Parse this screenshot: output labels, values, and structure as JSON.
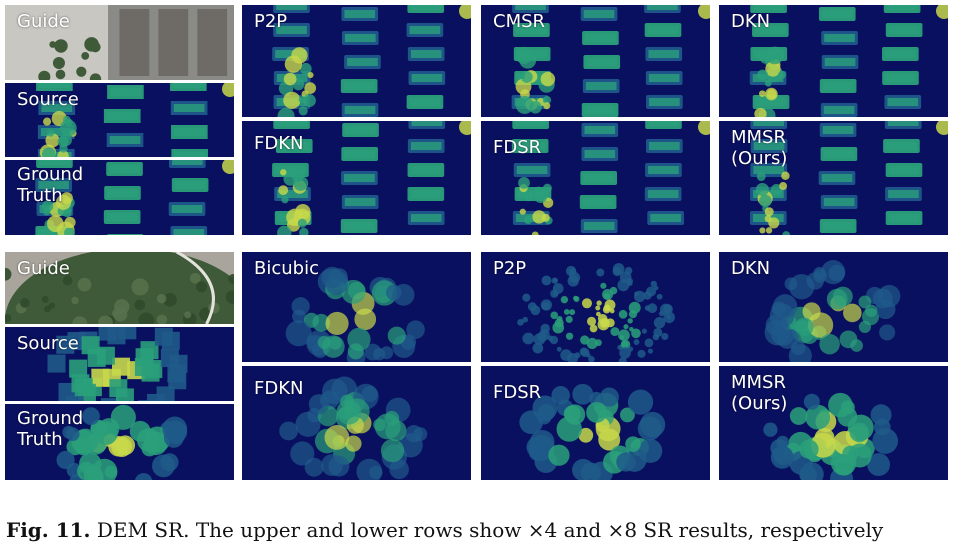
{
  "figure": {
    "upper": {
      "left_column": [
        {
          "label": "Guide",
          "kind": "aerial-buildings"
        },
        {
          "label": "Source",
          "kind": "dem-buildings-coarse"
        },
        {
          "label": "Ground\nTruth",
          "kind": "dem-buildings"
        }
      ],
      "grid": [
        {
          "label": "P2P",
          "kind": "dem-buildings"
        },
        {
          "label": "CMSR",
          "kind": "dem-buildings"
        },
        {
          "label": "DKN",
          "kind": "dem-buildings"
        },
        {
          "label": "FDKN",
          "kind": "dem-buildings"
        },
        {
          "label": "FDSR",
          "kind": "dem-buildings"
        },
        {
          "label": "MMSR\n(Ours)",
          "kind": "dem-buildings"
        }
      ]
    },
    "lower": {
      "left_column": [
        {
          "label": "Guide",
          "kind": "aerial-trees"
        },
        {
          "label": "Source",
          "kind": "dem-trees-coarse"
        },
        {
          "label": "Ground\nTruth",
          "kind": "dem-trees"
        }
      ],
      "grid": [
        {
          "label": "Bicubic",
          "kind": "dem-trees-blur"
        },
        {
          "label": "P2P",
          "kind": "dem-trees-noisy"
        },
        {
          "label": "DKN",
          "kind": "dem-trees-blur"
        },
        {
          "label": "FDKN",
          "kind": "dem-trees-blur"
        },
        {
          "label": "FDSR",
          "kind": "dem-trees"
        },
        {
          "label": "MMSR\n(Ours)",
          "kind": "dem-trees"
        }
      ]
    }
  },
  "caption": {
    "figure_number": "Fig. 11.",
    "text": " DEM SR. The upper and lower rows show ×4 and ×8 SR results, respectively"
  },
  "colors": {
    "dem_background": "#0a1060",
    "dem_low": "#1f5a8a",
    "dem_mid": "#2aa07a",
    "dem_high": "#c8d84a",
    "aerial_roof": "#6e6a66",
    "aerial_ground": "#8a8a86",
    "aerial_trees": "#3f5a38"
  }
}
